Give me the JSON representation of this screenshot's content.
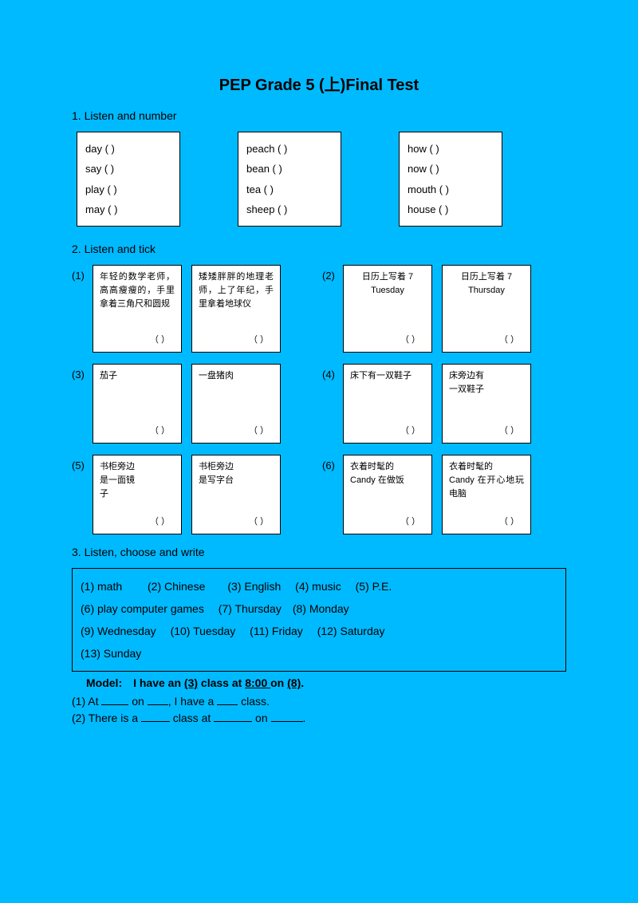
{
  "title": "PEP Grade 5 (上)Final Test",
  "section1": {
    "heading": "1.  Listen and number",
    "columns": [
      [
        "day   (    )",
        "say   (    )",
        "play   (    )",
        "may   (    )"
      ],
      [
        "peach (    )",
        "bean (    )",
        "tea     (    )",
        "sheep (    )"
      ],
      [
        "how (    )",
        "now (    )",
        "mouth (    )",
        "house (    )"
      ]
    ]
  },
  "section2": {
    "heading": "2.  Listen and tick",
    "pairs": [
      {
        "numA": "(1)",
        "a1": "年轻的数学老师，高高瘦瘦的，手里拿着三角尺和圆规",
        "a2": "矮矮胖胖的地理老师，上了年纪，手里拿着地球仪",
        "numB": "(2)",
        "b1": "日历上写着 7\nTuesday",
        "b2": "日历上写着 7\nThursday",
        "bcenter": true
      },
      {
        "numA": "(3)",
        "a1": "茄子",
        "a2": "一盘猪肉",
        "numB": "(4)",
        "b1": "床下有一双鞋子",
        "b2": "床旁边有\n一双鞋子"
      },
      {
        "numA": "(5)",
        "a1": "书柜旁边\n是一面镜\n子",
        "a2": "书柜旁边\n是写字台",
        "numB": "(6)",
        "b1": "衣着时髦的\nCandy  在做饭",
        "b2": "衣着时髦的\nCandy  在开心地玩电脑"
      }
    ]
  },
  "section3": {
    "heading": "3.  Listen, choose and write",
    "box_lines": [
      "(1) math   (2) Chinese  (3) English   (4) music   (5) P.E.",
      "(6) play computer games  (7) Thursday (8) Monday",
      "(9) Wednesday   (10) Tuesday  (11) Friday  (12) Saturday",
      "(13) Sunday"
    ],
    "model_prefix": "Model: I have an ",
    "model_u1": "(3)",
    "model_mid1": " class at ",
    "model_u2": "8:00 ",
    "model_mid2": "on ",
    "model_u3": "(8)",
    "model_end": ".",
    "fill1_a": "(1) At  ",
    "fill1_b": "  on  ",
    "fill1_c": ", I have a  ",
    "fill1_d": "  class.",
    "fill2_a": "(2) There is a  ",
    "fill2_b": "  class at  ",
    "fill2_c": "  on  ",
    "fill2_d": "."
  },
  "colors": {
    "bg": "#00baff",
    "box_bg": "#ffffff",
    "border": "#000000"
  }
}
